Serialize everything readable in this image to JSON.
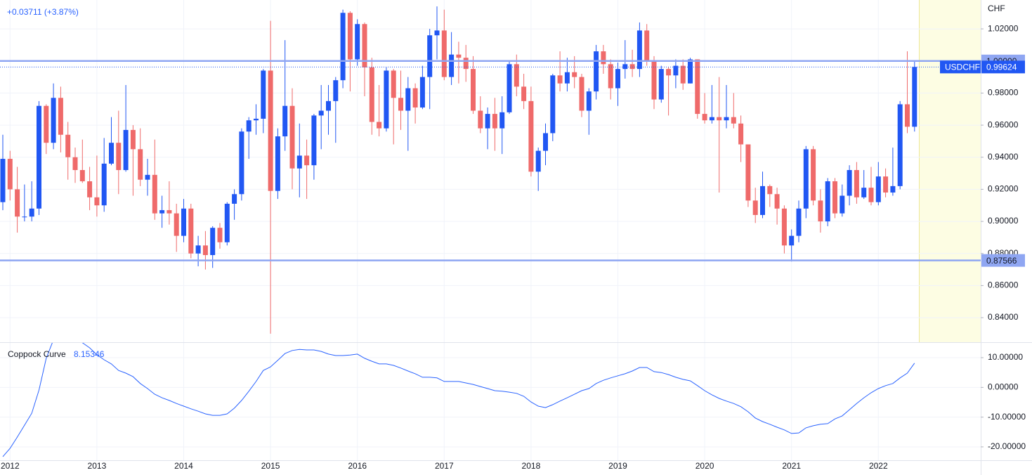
{
  "chart_data": [
    {
      "type": "candlestick",
      "change_label": "+0.03711 (+3.87%)",
      "unit": "CHF",
      "up_color": "#2157f3",
      "down_color": "#ef6a6a",
      "categories": [
        null,
        "2012",
        null,
        null,
        null,
        null,
        null,
        null,
        null,
        null,
        null,
        null,
        null,
        "2013",
        null,
        null,
        null,
        null,
        null,
        null,
        null,
        null,
        null,
        null,
        null,
        "2014",
        null,
        null,
        null,
        null,
        null,
        null,
        null,
        null,
        null,
        null,
        null,
        "2015",
        null,
        null,
        null,
        null,
        null,
        null,
        null,
        null,
        null,
        null,
        null,
        "2016",
        null,
        null,
        null,
        null,
        null,
        null,
        null,
        null,
        null,
        null,
        null,
        "2017",
        null,
        null,
        null,
        null,
        null,
        null,
        null,
        null,
        null,
        null,
        null,
        "2018",
        null,
        null,
        null,
        null,
        null,
        null,
        null,
        null,
        null,
        null,
        null,
        "2019",
        null,
        null,
        null,
        null,
        null,
        null,
        null,
        null,
        null,
        null,
        null,
        "2020",
        null,
        null,
        null,
        null,
        null,
        null,
        null,
        null,
        null,
        null,
        null,
        "2021",
        null,
        null,
        null,
        null,
        null,
        null,
        null,
        null,
        null,
        null,
        null,
        "2022",
        null,
        null,
        null,
        null,
        null
      ],
      "series": [
        {
          "name": "USDCHF",
          "open": [
            0.912,
            0.939,
            0.92,
            0.903,
            0.903,
            0.908,
            0.972,
            0.949,
            0.977,
            0.954,
            0.94,
            0.932,
            0.925,
            0.915,
            0.91,
            0.936,
            0.949,
            0.932,
            0.957,
            0.945,
            0.926,
            0.929,
            0.905,
            0.907,
            0.905,
            0.891,
            0.908,
            0.88,
            0.885,
            0.879,
            0.896,
            0.887,
            0.911,
            0.917,
            0.956,
            0.963,
            0.964,
            0.994,
            0.919,
            0.953,
            0.972,
            0.933,
            0.941,
            0.935,
            0.966,
            0.969,
            0.975,
            0.988,
            1.03,
            1.001,
            1.023,
            0.996,
            0.962,
            0.958,
            0.994,
            0.977,
            0.969,
            0.983,
            0.971,
            0.99,
            1.016,
            1.019,
            0.99,
            1.004,
            1.002,
            0.995,
            0.969,
            0.958,
            0.967,
            0.958,
            0.968,
            0.998,
            0.984,
            0.975,
            0.931,
            0.944,
            0.955,
            0.991,
            0.986,
            0.993,
            0.99,
            0.969,
            0.981,
            1.006,
            0.998,
            0.983,
            0.995,
            0.998,
            0.995,
            1.019,
            1.0,
            0.976,
            0.995,
            0.991,
            0.997,
            0.986,
            1.001,
            0.967,
            0.963,
            0.965,
            0.963,
            0.965,
            0.961,
            0.948,
            0.913,
            0.904,
            0.922,
            0.917,
            0.908,
            0.885,
            0.891,
            0.908,
            0.945,
            0.913,
            0.9,
            0.925,
            0.905,
            0.916,
            0.932,
            0.915,
            0.921,
            0.912,
            0.928,
            0.918,
            0.922,
            0.973,
            0.959
          ],
          "high": [
            0.954,
            0.944,
            0.934,
            0.923,
            0.925,
            0.975,
            0.973,
            0.986,
            0.984,
            0.962,
            0.946,
            0.951,
            0.934,
            0.941,
            0.952,
            0.965,
            0.969,
            0.985,
            0.96,
            0.958,
            0.939,
            0.951,
            0.916,
            0.925,
            0.911,
            0.914,
            0.911,
            0.891,
            0.894,
            0.897,
            0.899,
            0.912,
            0.92,
            0.958,
            0.965,
            0.973,
            0.995,
            1.025,
            0.958,
            1.013,
            0.983,
            0.961,
            0.951,
            0.967,
            0.985,
            0.985,
            0.99,
            1.032,
            1.031,
            1.026,
            1.024,
            1.002,
            0.985,
            0.996,
            0.995,
            0.994,
            0.99,
            0.986,
            0.997,
            1.02,
            1.034,
            1.032,
            1.018,
            1.012,
            1.01,
            1.003,
            0.978,
            0.971,
            0.977,
            0.978,
            1.0,
            1.004,
            0.992,
            0.984,
            0.946,
            0.961,
            0.992,
            1.006,
            1.002,
            1.003,
            0.992,
            0.983,
            1.01,
            1.01,
            1.001,
            0.999,
            1.013,
            1.007,
            1.024,
            1.023,
            1.003,
            0.997,
            0.996,
            1.001,
            1.001,
            1.002,
            1.001,
            0.98,
            0.985,
            0.99,
            0.985,
            0.98,
            0.966,
            0.948,
            0.921,
            0.931,
            0.923,
            0.921,
            0.91,
            0.895,
            0.913,
            0.947,
            0.947,
            0.92,
            0.927,
            0.927,
            0.923,
            0.935,
            0.937,
            0.932,
            0.934,
            0.937,
            0.933,
            0.946,
            0.975,
            1.006,
            1.0
          ],
          "low": [
            0.907,
            0.913,
            0.893,
            0.9,
            0.9,
            0.904,
            0.942,
            0.945,
            0.943,
            0.926,
            0.924,
            0.924,
            0.907,
            0.903,
            0.906,
            0.935,
            0.917,
            0.931,
            0.916,
            0.922,
            0.916,
            0.901,
            0.896,
            0.898,
            0.881,
            0.887,
            0.877,
            0.872,
            0.87,
            0.871,
            0.883,
            0.885,
            0.901,
            0.913,
            0.939,
            0.954,
            0.955,
            0.83,
            0.914,
            0.944,
            0.92,
            0.915,
            0.914,
            0.926,
            0.945,
            0.954,
            0.949,
            0.983,
            0.981,
            0.997,
            0.978,
            0.954,
            0.953,
            0.956,
            0.948,
            0.957,
            0.944,
            0.961,
            0.97,
            0.97,
            1.001,
            0.988,
            0.985,
            0.986,
            0.987,
            0.967,
            0.955,
            0.945,
            0.944,
            0.942,
            0.967,
            0.978,
            0.97,
            0.928,
            0.919,
            0.935,
            0.95,
            0.981,
            0.981,
            0.983,
            0.965,
            0.954,
            0.976,
            0.992,
            0.976,
            0.972,
            0.989,
            0.99,
            0.99,
            0.997,
            0.97,
            0.974,
            0.966,
            0.983,
            0.982,
            0.986,
            0.964,
            0.961,
            0.961,
            0.918,
            0.958,
            0.958,
            0.937,
            0.909,
            0.899,
            0.902,
            0.909,
            0.898,
            0.88,
            0.875,
            0.887,
            0.902,
            0.91,
            0.893,
            0.897,
            0.902,
            0.903,
            0.91,
            0.911,
            0.914,
            0.91,
            0.91,
            0.915,
            0.916,
            0.92,
            0.955,
            0.956
          ],
          "close": [
            0.939,
            0.92,
            0.903,
            0.903,
            0.908,
            0.972,
            0.949,
            0.977,
            0.954,
            0.94,
            0.932,
            0.925,
            0.915,
            0.91,
            0.936,
            0.949,
            0.932,
            0.957,
            0.945,
            0.926,
            0.929,
            0.905,
            0.907,
            0.905,
            0.891,
            0.908,
            0.88,
            0.885,
            0.879,
            0.896,
            0.887,
            0.911,
            0.917,
            0.956,
            0.963,
            0.964,
            0.994,
            0.919,
            0.953,
            0.972,
            0.933,
            0.941,
            0.935,
            0.966,
            0.969,
            0.975,
            0.988,
            1.03,
            1.001,
            1.023,
            0.996,
            0.962,
            0.958,
            0.994,
            0.977,
            0.969,
            0.983,
            0.971,
            0.99,
            1.016,
            1.019,
            0.99,
            1.004,
            1.002,
            0.995,
            0.969,
            0.958,
            0.967,
            0.958,
            0.968,
            0.998,
            0.984,
            0.975,
            0.931,
            0.944,
            0.955,
            0.991,
            0.986,
            0.993,
            0.99,
            0.969,
            0.981,
            1.006,
            0.998,
            0.983,
            0.995,
            0.998,
            0.995,
            1.019,
            1.0,
            0.976,
            0.995,
            0.991,
            0.997,
            0.986,
            1.001,
            0.967,
            0.963,
            0.965,
            0.963,
            0.965,
            0.961,
            0.948,
            0.913,
            0.904,
            0.922,
            0.917,
            0.908,
            0.885,
            0.891,
            0.908,
            0.945,
            0.913,
            0.9,
            0.925,
            0.905,
            0.916,
            0.932,
            0.915,
            0.921,
            0.912,
            0.928,
            0.918,
            0.922,
            0.973,
            0.959,
            0.99624
          ]
        }
      ],
      "hlines": [
        {
          "value": 1.0,
          "label": "1.00000",
          "color": "#8fa6f2"
        },
        {
          "value": 0.87566,
          "label": "0.87566",
          "color": "#8fa6f2"
        }
      ],
      "ylim": [
        0.8247,
        1.038
      ],
      "yticks": [
        {
          "value": 0.84,
          "label": "0.84000"
        },
        {
          "value": 0.86,
          "label": "0.86000"
        },
        {
          "value": 0.88,
          "label": "0.88000"
        },
        {
          "value": 0.9,
          "label": "0.90000"
        },
        {
          "value": 0.92,
          "label": "0.92000"
        },
        {
          "value": 0.94,
          "label": "0.94000"
        },
        {
          "value": 0.96,
          "label": "0.96000"
        },
        {
          "value": 0.98,
          "label": "0.98000"
        },
        {
          "value": 1.0,
          "label": "1.00000"
        },
        {
          "value": 1.02,
          "label": "1.02000"
        }
      ],
      "grid": true
    },
    {
      "type": "line",
      "title": "Coppock Curve",
      "series": [
        {
          "name": "Coppock Curve",
          "color": "#2962ff",
          "values": [
            -23.3,
            -20.5,
            -16.7,
            -12.7,
            -8.7,
            -0.9,
            9.8,
            16,
            19,
            20,
            18,
            15,
            13.3,
            11.0,
            9.3,
            7.9,
            5.7,
            4.8,
            3.6,
            1.3,
            -0.4,
            -2.3,
            -3.5,
            -4.4,
            -5.4,
            -6.3,
            -7.2,
            -8.0,
            -8.9,
            -9.4,
            -9.4,
            -8.9,
            -7.0,
            -4.4,
            -1.3,
            2.0,
            5.7,
            6.9,
            9.1,
            11.4,
            12.4,
            12.8,
            12.6,
            12.6,
            12.1,
            11.2,
            10.7,
            10.7,
            10.9,
            11.2,
            9.8,
            8.8,
            7.9,
            7.9,
            7.4,
            6.5,
            5.5,
            4.6,
            3.4,
            3.4,
            3.2,
            2.0,
            2.0,
            2.0,
            1.5,
            1.0,
            0.3,
            -0.4,
            -1.1,
            -1.3,
            -1.6,
            -2.0,
            -3.0,
            -4.9,
            -6.3,
            -6.8,
            -5.8,
            -4.6,
            -3.5,
            -2.3,
            -1.1,
            -0.4,
            1.3,
            2.4,
            3.2,
            3.9,
            4.6,
            5.5,
            6.7,
            6.7,
            5.3,
            5.0,
            4.3,
            3.4,
            2.7,
            2.2,
            0.6,
            -1.1,
            -2.5,
            -3.7,
            -4.6,
            -5.4,
            -6.5,
            -8.2,
            -10.3,
            -11.5,
            -12.4,
            -13.4,
            -14.3,
            -15.5,
            -15.3,
            -13.6,
            -12.9,
            -12.4,
            -12.2,
            -10.6,
            -9.6,
            -7.5,
            -5.4,
            -3.5,
            -1.8,
            -0.4,
            0.6,
            1.3,
            3.2,
            4.8,
            8.15346
          ]
        }
      ],
      "ylim": [
        -24.5,
        15.2
      ],
      "yticks": [
        {
          "value": 10,
          "label": "10.00000"
        },
        {
          "value": 0,
          "label": "0.00000"
        },
        {
          "value": -10,
          "label": "-10.00000"
        },
        {
          "value": -20,
          "label": "-20.00000"
        }
      ],
      "grid": true
    }
  ]
}
